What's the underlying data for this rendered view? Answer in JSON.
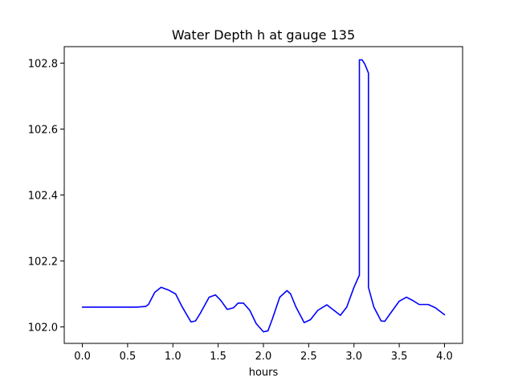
{
  "chart_data": {
    "type": "line",
    "title": "Water Depth h at gauge 135",
    "xlabel": "hours",
    "ylabel": "",
    "xlim": [
      -0.2,
      4.2
    ],
    "ylim": [
      101.95,
      102.85
    ],
    "xticks": [
      0.0,
      0.5,
      1.0,
      1.5,
      2.0,
      2.5,
      3.0,
      3.5,
      4.0
    ],
    "xtick_labels": [
      "0.0",
      "0.5",
      "1.0",
      "1.5",
      "2.0",
      "2.5",
      "3.0",
      "3.5",
      "4.0"
    ],
    "yticks": [
      102.0,
      102.2,
      102.4,
      102.6,
      102.8
    ],
    "ytick_labels": [
      "102.0",
      "102.2",
      "102.4",
      "102.6",
      "102.8"
    ],
    "grid": false,
    "series": [
      {
        "color": "#0000ff",
        "x": [
          0.0,
          0.2,
          0.4,
          0.6,
          0.7,
          0.73,
          0.8,
          0.87,
          0.95,
          1.03,
          1.1,
          1.2,
          1.25,
          1.3,
          1.4,
          1.47,
          1.53,
          1.6,
          1.67,
          1.72,
          1.78,
          1.85,
          1.92,
          2.0,
          2.05,
          2.1,
          2.18,
          2.26,
          2.3,
          2.36,
          2.45,
          2.52,
          2.6,
          2.7,
          2.78,
          2.85,
          2.92,
          3.0,
          3.06,
          3.06,
          3.09,
          3.12,
          3.16,
          3.16,
          3.22,
          3.3,
          3.34,
          3.4,
          3.5,
          3.58,
          3.65,
          3.72,
          3.82,
          3.9,
          4.0
        ],
        "y": [
          102.06,
          102.06,
          102.06,
          102.06,
          102.062,
          102.068,
          102.105,
          102.12,
          102.112,
          102.1,
          102.062,
          102.015,
          102.018,
          102.04,
          102.09,
          102.097,
          102.08,
          102.053,
          102.058,
          102.072,
          102.072,
          102.05,
          102.01,
          101.985,
          101.988,
          102.025,
          102.09,
          102.11,
          102.1,
          102.06,
          102.013,
          102.022,
          102.05,
          102.067,
          102.05,
          102.035,
          102.06,
          102.12,
          102.157,
          102.81,
          102.81,
          102.797,
          102.77,
          102.12,
          102.06,
          102.018,
          102.017,
          102.04,
          102.078,
          102.09,
          102.08,
          102.068,
          102.068,
          102.058,
          102.037
        ]
      }
    ]
  }
}
